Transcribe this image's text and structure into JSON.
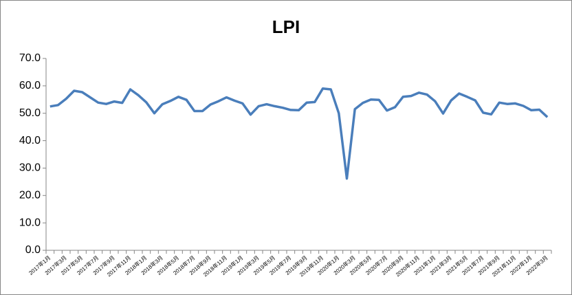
{
  "chart_data": {
    "type": "line",
    "title": "LPI",
    "categories": [
      "2017年1月",
      null,
      "2017年3月",
      null,
      "2017年5月",
      null,
      "2017年7月",
      null,
      "2017年9月",
      null,
      "2017年11月",
      null,
      "2018年1月",
      null,
      "2018年3月",
      null,
      "2018年5月",
      null,
      "2018年7月",
      null,
      "2018年9月",
      null,
      "2018年11月",
      null,
      "2019年1月",
      null,
      "2019年3月",
      null,
      "2019年5月",
      null,
      "2019年7月",
      null,
      "2019年9月",
      null,
      "2019年11月",
      null,
      "2020年1月",
      null,
      "2020年3月",
      null,
      "2020年5月",
      null,
      "2020年7月",
      null,
      "2020年9月",
      null,
      "2020年11月",
      null,
      "2021年1月",
      null,
      "2021年3月",
      null,
      "2021年5月",
      null,
      "2021年7月",
      null,
      "2021年9月",
      null,
      "2021年11月",
      null,
      "2022年1月",
      null,
      "2022年3月"
    ],
    "series": [
      {
        "name": "LPI",
        "color": "#4a7ebb",
        "values": [
          52.5,
          53.0,
          55.3,
          58.2,
          57.7,
          55.8,
          53.9,
          53.4,
          54.3,
          53.8,
          58.7,
          56.6,
          54.0,
          50.0,
          53.3,
          54.5,
          56.0,
          54.9,
          50.8,
          50.8,
          53.2,
          54.4,
          55.8,
          54.6,
          53.6,
          49.5,
          52.6,
          53.3,
          52.6,
          52.0,
          51.2,
          51.1,
          53.9,
          54.1,
          59.0,
          58.7,
          50.0,
          26.2,
          51.5,
          53.8,
          55.0,
          54.9,
          51.0,
          52.2,
          56.0,
          56.3,
          57.5,
          56.8,
          54.4,
          49.9,
          54.7,
          57.2,
          56.0,
          54.7,
          50.2,
          49.6,
          53.9,
          53.4,
          53.6,
          52.7,
          51.1,
          51.3,
          48.6
        ]
      }
    ],
    "ylim": [
      0,
      70
    ],
    "yticks": [
      {
        "value": 0,
        "label": "0.0"
      },
      {
        "value": 10,
        "label": "10.0"
      },
      {
        "value": 20,
        "label": "20.0"
      },
      {
        "value": 30,
        "label": "30.0"
      },
      {
        "value": 40,
        "label": "40.0"
      },
      {
        "value": 50,
        "label": "50.0"
      },
      {
        "value": 60,
        "label": "60.0"
      },
      {
        "value": 70,
        "label": "70.0"
      }
    ]
  }
}
